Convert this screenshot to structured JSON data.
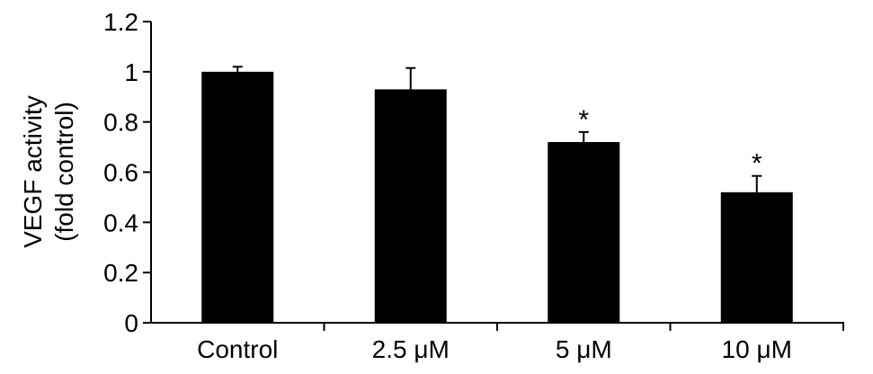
{
  "chart_data": {
    "type": "bar",
    "categories": [
      "Control",
      "2.5 μM",
      "5 μM",
      "10 μM"
    ],
    "values": [
      1.0,
      0.93,
      0.72,
      0.52
    ],
    "error": [
      0.02,
      0.085,
      0.04,
      0.065
    ],
    "significance": [
      "",
      "",
      "*",
      "*"
    ],
    "ylabel_lines": [
      "VEGF activity",
      "(fold control)"
    ],
    "xlabel": "",
    "ylim": [
      0,
      1.2
    ],
    "yticks": [
      "0",
      "0.2",
      "0.4",
      "0.6",
      "0.8",
      "1",
      "1.2"
    ],
    "ytick_values": [
      0,
      0.2,
      0.4,
      0.6,
      0.8,
      1.0,
      1.2
    ],
    "grid": false,
    "colors": {
      "bar": "#000000",
      "axis": "#000000",
      "background": "#ffffff"
    }
  }
}
